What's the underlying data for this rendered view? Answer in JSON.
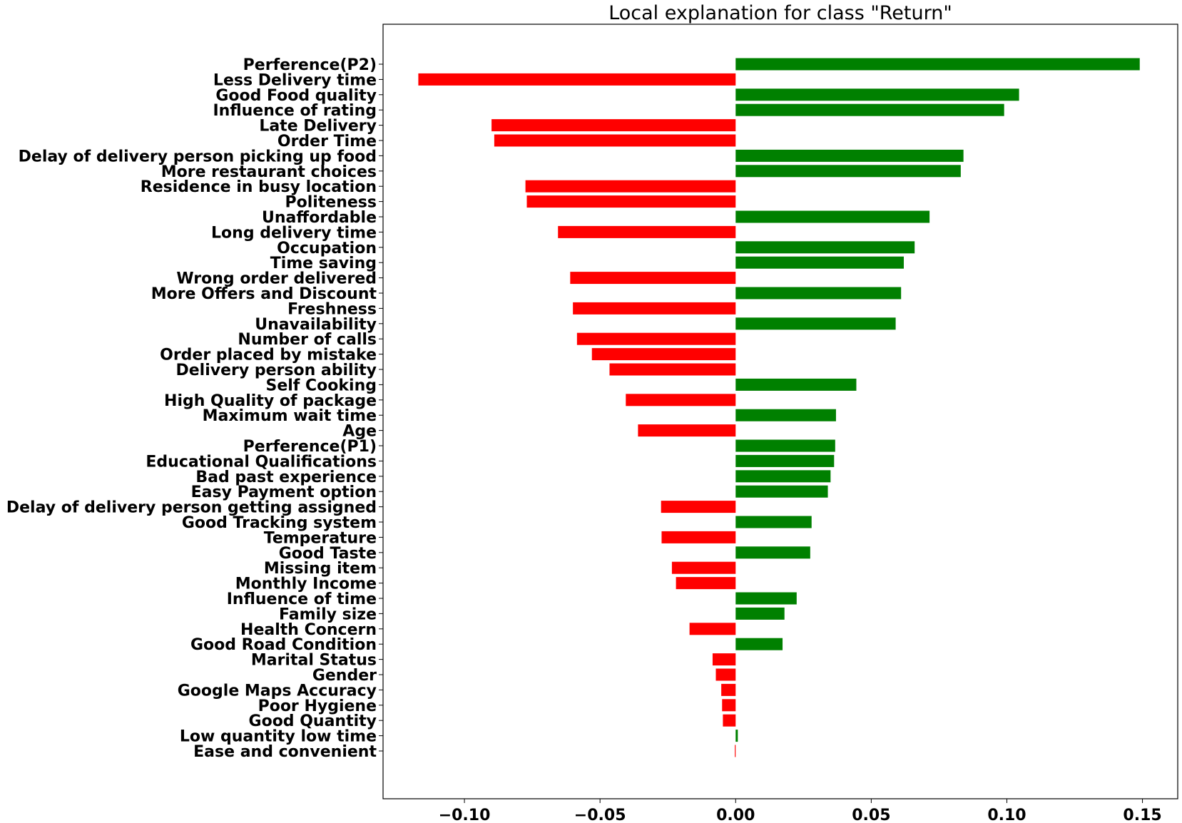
{
  "chart_data": {
    "type": "bar",
    "orientation": "horizontal",
    "title": "Local explanation for class \"Return\"",
    "xlabel": "",
    "ylabel": "",
    "xlim": [
      -0.13,
      0.163
    ],
    "xticks": [
      -0.1,
      -0.05,
      0.0,
      0.05,
      0.1,
      0.15
    ],
    "xtick_labels": [
      "−0.10",
      "−0.05",
      "0.00",
      "0.05",
      "0.10",
      "0.15"
    ],
    "grid": false,
    "colors": {
      "positive": "#008000",
      "negative": "#ff0000"
    },
    "categories": [
      "Perference(P2)",
      "Less Delivery time",
      "Good Food quality",
      "Influence of rating",
      "Late Delivery",
      "Order Time",
      "Delay of delivery person picking up food",
      "More restaurant choices",
      "Residence in busy location",
      "Politeness",
      "Unaffordable",
      "Long delivery time",
      "Occupation",
      "Time saving",
      "Wrong order delivered",
      "More Offers and Discount",
      "Freshness ",
      "Unavailability",
      "Number of calls",
      "Order placed by mistake",
      "Delivery person ability",
      "Self Cooking",
      "High Quality of package",
      "Maximum wait time",
      "Age",
      "Perference(P1)",
      "Educational Qualifications",
      "Bad past experience",
      "Easy Payment option",
      "Delay of delivery person getting assigned",
      "Good Tracking system",
      "Temperature",
      "Good Taste ",
      "Missing item",
      "Monthly Income",
      "Influence of time",
      "Family size",
      "Health Concern",
      "Good Road Condition",
      "Marital Status",
      "Gender",
      "Google Maps Accuracy",
      "Poor Hygiene",
      "Good Quantity",
      "Low quantity low time",
      "Ease and convenient"
    ],
    "values": [
      0.149,
      -0.117,
      0.1045,
      0.099,
      -0.09,
      -0.089,
      0.084,
      0.083,
      -0.0775,
      -0.077,
      0.0715,
      -0.0655,
      0.066,
      0.062,
      -0.061,
      0.061,
      -0.06,
      0.059,
      -0.0585,
      -0.053,
      -0.0465,
      0.0445,
      -0.0405,
      0.037,
      -0.036,
      0.0367,
      0.0363,
      0.035,
      0.034,
      -0.0275,
      0.028,
      -0.0273,
      0.0275,
      -0.0235,
      -0.022,
      0.0225,
      0.018,
      -0.017,
      0.0173,
      -0.0085,
      -0.0073,
      -0.0053,
      -0.005,
      -0.0047,
      0.0008,
      -0.0003
    ]
  }
}
